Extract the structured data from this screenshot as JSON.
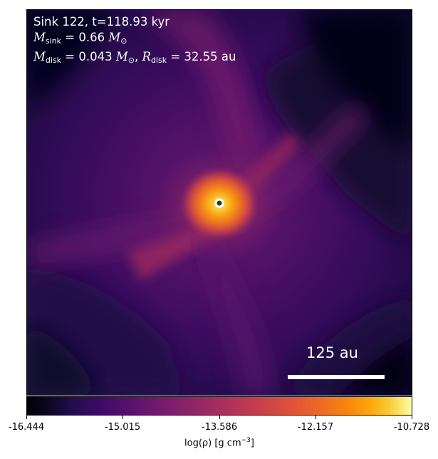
{
  "overlay": {
    "line1": "Sink 122, t=118.93 kyr",
    "mass_sink": "0.66",
    "mass_disk": "0.043",
    "radius_disk": "32.55",
    "unit_mass_symbol": "M",
    "unit_length": "au"
  },
  "scale_bar": {
    "label": "125 au"
  },
  "colorbar": {
    "ticks": [
      "-16.444",
      "-15.015",
      "-13.586",
      "-12.157",
      "-10.728"
    ],
    "min": -16.444,
    "max": -10.728,
    "label": "log(ρ) [g cm",
    "label_exp": "−3",
    "label_close": "]"
  },
  "colors": {
    "ring": "#ffffff",
    "sink_core": "#2b3b1f",
    "colormap": "inferno"
  }
}
